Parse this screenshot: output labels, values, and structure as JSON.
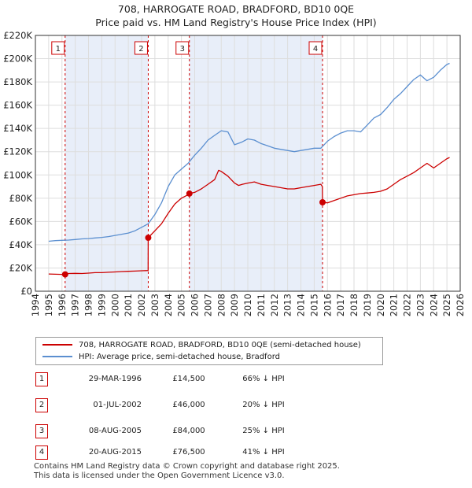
{
  "header": {
    "title_line1": "708, HARROGATE ROAD, BRADFORD, BD10 0QE",
    "title_line2": "Price paid vs. HM Land Registry's House Price Index (HPI)"
  },
  "legend": {
    "series1_label": "708, HARROGATE ROAD, BRADFORD, BD10 0QE (semi-detached house)",
    "series2_label": "HPI: Average price, semi-detached house, Bradford"
  },
  "sales": [
    {
      "num": "1",
      "date": "29-MAR-1996",
      "price": "£14,500",
      "hpi": "66% ↓ HPI"
    },
    {
      "num": "2",
      "date": "01-JUL-2002",
      "price": "£46,000",
      "hpi": "20% ↓ HPI"
    },
    {
      "num": "3",
      "date": "08-AUG-2005",
      "price": "£84,000",
      "hpi": "25% ↓ HPI"
    },
    {
      "num": "4",
      "date": "20-AUG-2015",
      "price": "£76,500",
      "hpi": "41% ↓ HPI"
    }
  ],
  "footer": {
    "line1": "Contains HM Land Registry data © Crown copyright and database right 2025.",
    "line2": "This data is licensed under the Open Government Licence v3.0."
  },
  "colors": {
    "property": "#cc0000",
    "hpi": "#5b8fd0",
    "shade": "#e8eef9",
    "grid": "#dddddd",
    "marker_border": "#cc0000"
  },
  "chart_data": {
    "type": "line",
    "title": "708, HARROGATE ROAD, BRADFORD, BD10 0QE",
    "subtitle": "Price paid vs. HM Land Registry's House Price Index (HPI)",
    "xlabel": "",
    "ylabel": "",
    "xlim": [
      1994,
      2026
    ],
    "ylim": [
      0,
      220000
    ],
    "x_ticks": [
      1994,
      1995,
      1996,
      1997,
      1998,
      1999,
      2000,
      2001,
      2002,
      2003,
      2004,
      2005,
      2006,
      2007,
      2008,
      2009,
      2010,
      2011,
      2012,
      2013,
      2014,
      2015,
      2016,
      2017,
      2018,
      2019,
      2020,
      2021,
      2022,
      2023,
      2024,
      2025,
      2026
    ],
    "y_ticks": [
      {
        "value": 0,
        "label": "£0"
      },
      {
        "value": 20000,
        "label": "£20K"
      },
      {
        "value": 40000,
        "label": "£40K"
      },
      {
        "value": 60000,
        "label": "£60K"
      },
      {
        "value": 80000,
        "label": "£80K"
      },
      {
        "value": 100000,
        "label": "£100K"
      },
      {
        "value": 120000,
        "label": "£120K"
      },
      {
        "value": 140000,
        "label": "£140K"
      },
      {
        "value": 160000,
        "label": "£160K"
      },
      {
        "value": 180000,
        "label": "£180K"
      },
      {
        "value": 200000,
        "label": "£200K"
      },
      {
        "value": 220000,
        "label": "£220K"
      }
    ],
    "grid": true,
    "shaded_periods": [
      [
        1996.24,
        2002.5
      ],
      [
        2005.6,
        2015.63
      ]
    ],
    "sale_markers": [
      {
        "label": "1",
        "x": 1996.24,
        "y": 14500
      },
      {
        "label": "2",
        "x": 2002.5,
        "y": 46000
      },
      {
        "label": "3",
        "x": 2005.6,
        "y": 84000
      },
      {
        "label": "4",
        "x": 2015.63,
        "y": 76500
      }
    ],
    "series": [
      {
        "name": "708, HARROGATE ROAD, BRADFORD, BD10 0QE (semi-detached house)",
        "color": "#cc0000",
        "x": [
          1995.0,
          1995.5,
          1996.0,
          1996.24,
          1996.5,
          1997.0,
          1997.5,
          1998.0,
          1998.5,
          1999.0,
          1999.5,
          2000.0,
          2000.5,
          2001.0,
          2001.5,
          2002.0,
          2002.49,
          2002.5,
          2003.0,
          2003.5,
          2004.0,
          2004.5,
          2005.0,
          2005.5,
          2005.6,
          2006.0,
          2006.5,
          2007.0,
          2007.5,
          2007.8,
          2008.0,
          2008.5,
          2009.0,
          2009.3,
          2009.6,
          2010.0,
          2010.5,
          2011.0,
          2011.5,
          2012.0,
          2012.5,
          2013.0,
          2013.5,
          2014.0,
          2014.5,
          2015.0,
          2015.5,
          2015.62,
          2015.63,
          2016.0,
          2016.5,
          2017.0,
          2017.5,
          2018.0,
          2018.5,
          2019.0,
          2019.5,
          2020.0,
          2020.5,
          2021.0,
          2021.5,
          2022.0,
          2022.5,
          2023.0,
          2023.5,
          2024.0,
          2024.5,
          2025.0,
          2025.2
        ],
        "values": [
          14800,
          14600,
          14500,
          14500,
          15200,
          15400,
          15200,
          15600,
          16000,
          16000,
          16300,
          16600,
          16900,
          17100,
          17300,
          17600,
          17800,
          46000,
          52000,
          58000,
          67000,
          75000,
          80000,
          83000,
          84000,
          85000,
          88000,
          92000,
          96000,
          104000,
          103000,
          99000,
          93000,
          91000,
          92000,
          93000,
          94000,
          92000,
          91000,
          90000,
          89000,
          88000,
          88000,
          89000,
          90000,
          91000,
          92000,
          90000,
          76500,
          76000,
          78000,
          80000,
          82000,
          83000,
          84000,
          84500,
          85000,
          86000,
          88000,
          92000,
          96000,
          99000,
          102000,
          106000,
          110000,
          106000,
          110000,
          114000,
          115000
        ]
      },
      {
        "name": "HPI: Average price, semi-detached house, Bradford",
        "color": "#5b8fd0",
        "x": [
          1995.0,
          1995.5,
          1996.0,
          1996.5,
          1997.0,
          1997.5,
          1998.0,
          1998.5,
          1999.0,
          1999.5,
          2000.0,
          2000.5,
          2001.0,
          2001.5,
          2002.0,
          2002.5,
          2003.0,
          2003.5,
          2004.0,
          2004.5,
          2005.0,
          2005.5,
          2006.0,
          2006.5,
          2007.0,
          2007.5,
          2008.0,
          2008.5,
          2009.0,
          2009.5,
          2010.0,
          2010.5,
          2011.0,
          2011.5,
          2012.0,
          2012.5,
          2013.0,
          2013.5,
          2014.0,
          2014.5,
          2015.0,
          2015.5,
          2016.0,
          2016.5,
          2017.0,
          2017.5,
          2018.0,
          2018.5,
          2019.0,
          2019.5,
          2020.0,
          2020.5,
          2021.0,
          2021.5,
          2022.0,
          2022.5,
          2023.0,
          2023.5,
          2024.0,
          2024.5,
          2025.0,
          2025.2
        ],
        "values": [
          43000,
          43500,
          43800,
          44000,
          44500,
          45000,
          45300,
          45800,
          46300,
          47000,
          48000,
          49000,
          50000,
          52000,
          55000,
          58000,
          66000,
          76000,
          90000,
          100000,
          105000,
          110000,
          117000,
          123000,
          130000,
          134000,
          138000,
          137000,
          126000,
          128000,
          131000,
          130000,
          127000,
          125000,
          123000,
          122000,
          121000,
          120000,
          121000,
          122000,
          123000,
          123000,
          129000,
          133000,
          136000,
          138000,
          138000,
          137000,
          143000,
          149000,
          152000,
          158000,
          165000,
          170000,
          176000,
          182000,
          186000,
          181000,
          184000,
          190000,
          195000,
          196000
        ]
      }
    ]
  }
}
